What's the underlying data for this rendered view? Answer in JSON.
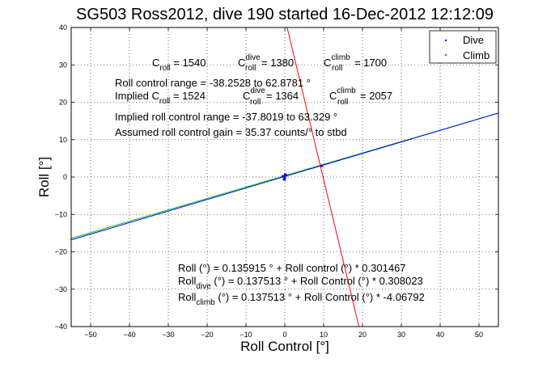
{
  "chart_data": {
    "type": "line",
    "title": "SG503 Ross2012, dive 190 started 16-Dec-2012 12:12:09",
    "xlabel": "Roll Control [°]",
    "ylabel": "Roll [°]",
    "xlim": [
      -55,
      55
    ],
    "ylim": [
      -40,
      40
    ],
    "xticks": [
      -50,
      -40,
      -30,
      -20,
      -10,
      0,
      10,
      20,
      30,
      40,
      50
    ],
    "yticks": [
      -40,
      -30,
      -20,
      -10,
      0,
      10,
      20,
      30,
      40
    ],
    "grid": true,
    "legend_position": "top-right",
    "series": [
      {
        "name": "Dive",
        "color": "#0000ff",
        "marker": "point",
        "points": [
          [
            -0.5,
            0.2
          ],
          [
            0,
            0
          ],
          [
            0.3,
            0.5
          ],
          [
            -0.2,
            -0.6
          ],
          [
            9.5,
            3.0
          ]
        ]
      },
      {
        "name": "Climb",
        "color": "#00aa00",
        "marker": "point",
        "points": [
          [
            0,
            0.1
          ]
        ]
      }
    ],
    "fits": [
      {
        "color": "#00cc00",
        "x": [
          -55,
          55
        ],
        "y": [
          -16.4,
          17.1
        ]
      },
      {
        "color": "#0000ff",
        "x": [
          -55,
          55
        ],
        "y": [
          -16.8,
          17.1
        ]
      },
      {
        "color": "#ff0000",
        "x": [
          0.6,
          19.1
        ],
        "y": [
          40,
          -40
        ]
      }
    ],
    "annotations": {
      "croll": {
        "l1": "C",
        "s1": "roll",
        "v1": " = 1540",
        "l2": "C",
        "sup2": "dive",
        "s2": "roll",
        "v2": " = 1380",
        "l3": "C",
        "sup3": "climb",
        "s3": "roll",
        "v3": " = 1700"
      },
      "range": "Roll control range = -38.2528 to 62.8781 °",
      "implied": {
        "l1": "Implied C",
        "s1": "roll",
        "v1": " = 1524",
        "l2": "C",
        "sup2": "dive",
        "s2": "roll",
        "v2": " = 1364",
        "l3": "C",
        "sup3": "climb",
        "s3": "roll",
        "v3": " = 2057"
      },
      "implied_range": "Implied roll control range = -37.8019 to 63.329 °",
      "gain": "Assumed roll control gain = 35.37 counts/° to stbd",
      "eq1": "Roll (°) = 0.135915 ° + Roll control (°) * 0.301467",
      "eq2": {
        "a": "Roll",
        "sub": "dive",
        "b": " (°) = 0.137513 ° + Roll Control (°) * 0.308023"
      },
      "eq3": {
        "a": "Roll",
        "sub": "climb",
        "b": " (°) = 0.137513 ° + Roll Control (°) * -4.06792"
      }
    }
  }
}
